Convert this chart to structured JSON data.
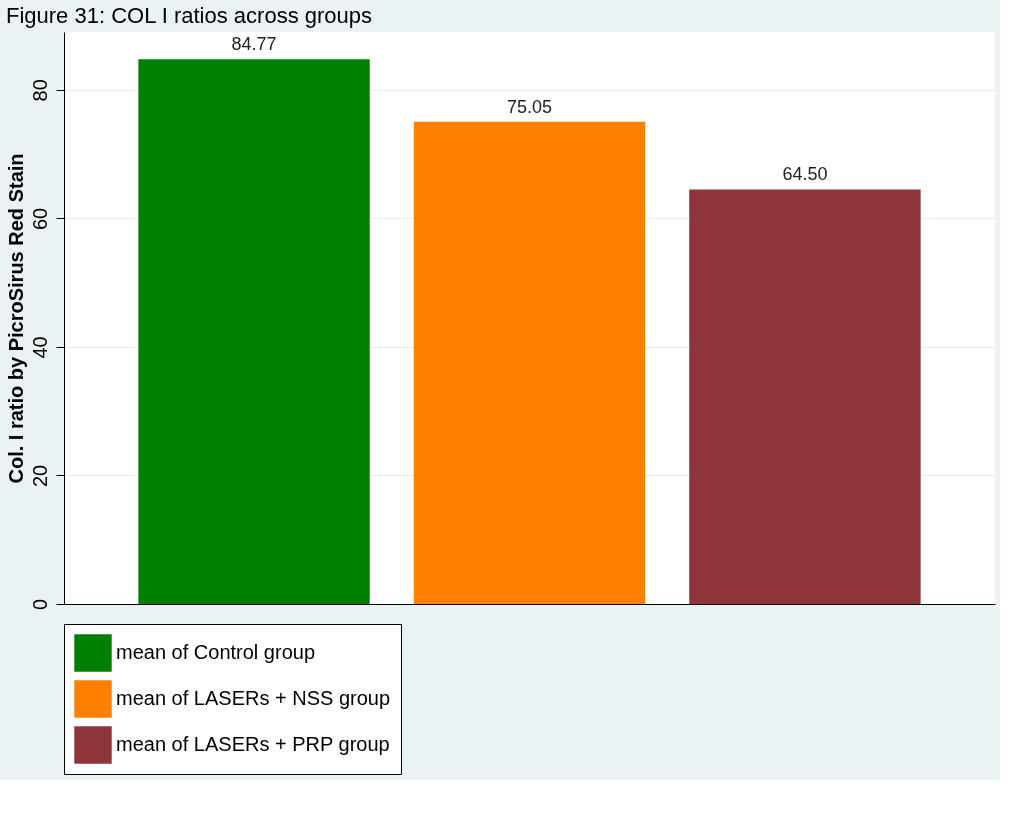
{
  "chart_data": {
    "type": "bar",
    "title": "Figure 31: COL I ratios across groups",
    "ylabel": "Col. I ratio by PicroSirus Red Stain",
    "categories": [
      null,
      null,
      null
    ],
    "series": [
      {
        "name": "mean of Control group",
        "color": "#008000",
        "values": [
          84.77,
          null,
          null
        ],
        "value_labels": [
          "84.77",
          null,
          null
        ]
      },
      {
        "name": "mean of LASERs + NSS group",
        "color": "#ff7f00",
        "values": [
          null,
          75.05,
          null
        ],
        "value_labels": [
          null,
          "75.05",
          null
        ]
      },
      {
        "name": "mean of LASERs + PRP group",
        "color": "#8e353b",
        "values": [
          null,
          null,
          64.5
        ],
        "value_labels": [
          null,
          null,
          "64.50"
        ]
      }
    ],
    "ylim": [
      0,
      89
    ],
    "yticks": [
      0,
      20,
      40,
      60,
      80
    ],
    "grid": "y",
    "legend": "bottom"
  }
}
